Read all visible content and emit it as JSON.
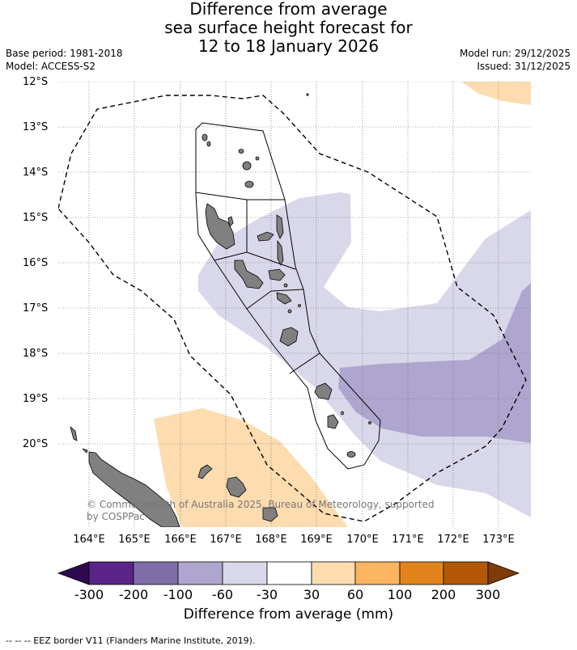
{
  "title": {
    "line1": "Difference from average",
    "line2": "sea surface height forecast for",
    "line3": "12 to 18 January 2026"
  },
  "meta": {
    "base_period": "Base period: 1981-2018",
    "model": "Model: ACCESS-S2",
    "model_run": "Model run: 29/12/2025",
    "issued": "Issued: 31/12/2025"
  },
  "latitudes": [
    "12°S",
    "13°S",
    "14°S",
    "15°S",
    "16°S",
    "17°S",
    "18°S",
    "19°S",
    "20°S"
  ],
  "longitudes": [
    "164°E",
    "165°E",
    "166°E",
    "167°E",
    "168°E",
    "169°E",
    "170°E",
    "171°E",
    "172°E",
    "173°E"
  ],
  "copyright": "© Commonwealth of Australia 2025, Bureau of Meteorology, supported by COSPPac",
  "colorbar": {
    "labels": [
      "-300",
      "-200",
      "-100",
      "-60",
      "-30",
      "30",
      "60",
      "100",
      "200",
      "300"
    ],
    "colors": [
      "#2d0a4e",
      "#5a2388",
      "#7f6daa",
      "#afa6cf",
      "#d9d8ea",
      "#ffffff",
      "#fddcb0",
      "#fbb560",
      "#e3831b",
      "#b35806",
      "#7f3b08"
    ],
    "title": "Difference from average (mm)"
  },
  "footnote": "--  --  -- EEZ border V11 (Flanders Marine Institute, 2019).",
  "colors": {
    "land": "#808080",
    "neg_light": "#d9d8ea",
    "neg_mid": "#afa6cf",
    "pos_light": "#fddcb0"
  }
}
